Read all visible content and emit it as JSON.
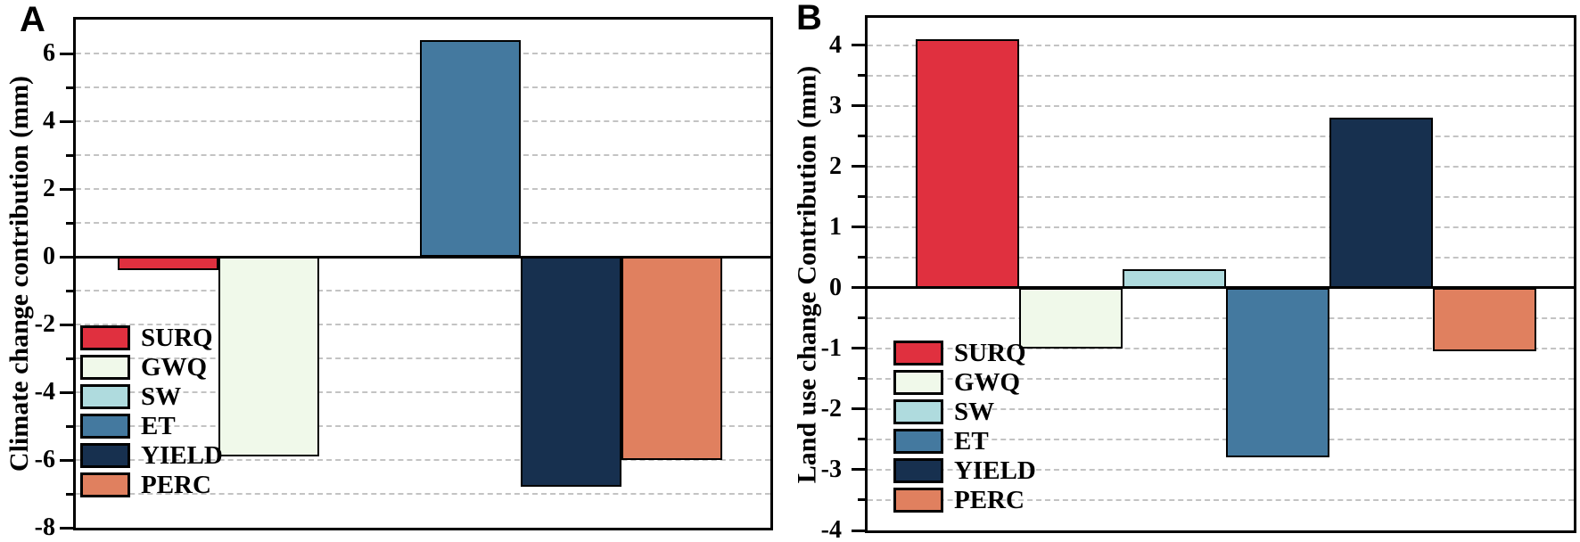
{
  "figure_title": "",
  "colors": {
    "SURQ": "#E0303F",
    "GWQ": "#F0F9EA",
    "SW": "#AFDBDE",
    "ET": "#44799F",
    "YIELD": "#17304F",
    "PERC": "#E0805F",
    "axis": "#000000",
    "gridline": "#c3c3c3",
    "background": "#ffffff"
  },
  "chart_data": [
    {
      "panel_label": "A",
      "type": "bar",
      "title": "",
      "xlabel": "",
      "ylabel": "Climate change contribution (mm)",
      "categories": [
        "SURQ",
        "GWQ",
        "SW",
        "ET",
        "YIELD",
        "PERC"
      ],
      "values": [
        -0.4,
        -5.9,
        0.0,
        6.4,
        -6.8,
        -6.0
      ],
      "ylim": [
        -8,
        7
      ],
      "yticks_major": [
        6,
        4,
        2,
        0,
        -2,
        -4,
        -6,
        -8
      ],
      "ytick_labels": [
        "6",
        "4",
        "2",
        "0",
        "-2",
        "-4",
        "-6",
        "-8"
      ],
      "yticks_minor": [
        5,
        3,
        1,
        -1,
        -3,
        -5,
        -7
      ],
      "grid_values": [
        6,
        5,
        4,
        3,
        2,
        1,
        -1,
        -2,
        -3,
        -4,
        -5,
        -6,
        -7
      ],
      "grid_style": "dashed horizontal",
      "legend_position": "lower-left",
      "legend_entries": [
        "SURQ",
        "GWQ",
        "SW",
        "ET",
        "YIELD",
        "PERC"
      ],
      "bar_colors": [
        "#E0303F",
        "#F0F9EA",
        "#AFDBDE",
        "#44799F",
        "#17304F",
        "#E0805F"
      ]
    },
    {
      "panel_label": "B",
      "type": "bar",
      "title": "",
      "xlabel": "",
      "ylabel": "Land use change Contribution (mm)",
      "categories": [
        "SURQ",
        "GWQ",
        "SW",
        "ET",
        "YIELD",
        "PERC"
      ],
      "values": [
        4.1,
        -1.0,
        0.3,
        -2.8,
        2.8,
        -1.05
      ],
      "ylim": [
        -4,
        4.45
      ],
      "yticks_major": [
        4,
        3,
        2,
        1,
        0,
        -1,
        -2,
        -3,
        -4
      ],
      "ytick_labels": [
        "4",
        "3",
        "2",
        "1",
        "0",
        "-1",
        "-2",
        "-3",
        "-4"
      ],
      "yticks_minor": [
        3.5,
        2.5,
        1.5,
        0.5,
        -0.5,
        -1.5,
        -2.5,
        -3.5
      ],
      "grid_values": [
        4,
        3.5,
        3,
        2.5,
        2,
        1.5,
        1,
        0.5,
        -0.5,
        -1,
        -1.5,
        -2,
        -2.5,
        -3,
        -3.5
      ],
      "grid_style": "dashed horizontal",
      "legend_position": "lower-left",
      "legend_entries": [
        "SURQ",
        "GWQ",
        "SW",
        "ET",
        "YIELD",
        "PERC"
      ],
      "bar_colors": [
        "#E0303F",
        "#F0F9EA",
        "#AFDBDE",
        "#44799F",
        "#17304F",
        "#E0805F"
      ]
    }
  ]
}
